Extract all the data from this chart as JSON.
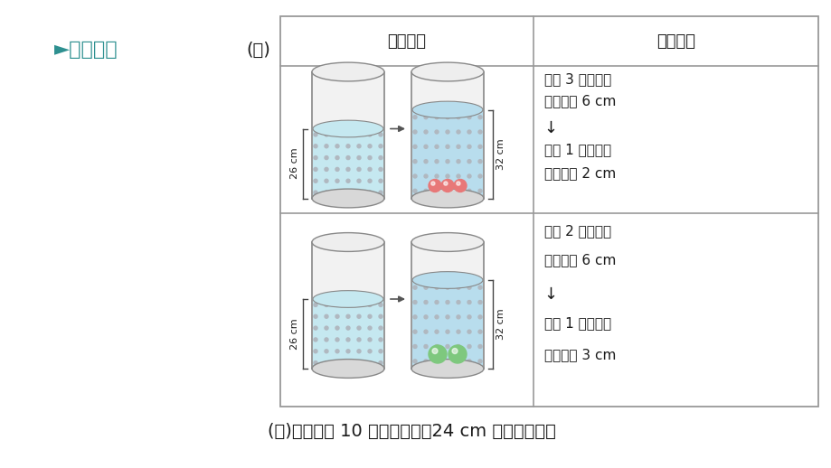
{
  "bg_color": "#ffffff",
  "title_color": "#2E9090",
  "title_text": "►思路分析",
  "label1": "(１)",
  "col1_header": "图形信息",
  "col2_header": "数学关系",
  "row1_text": [
    "放入 3 个小球，",
    "水面升高 6 cm",
    "↓",
    "放入 1 个小球，",
    "水面升高 2 cm"
  ],
  "row2_text": [
    "放入 2 个大球，",
    "水面升高 6 cm",
    "↓",
    "放入 1 个大球，",
    "水面升高 3 cm"
  ],
  "bottom_text_parts": [
    {
      "text": "(２)根据放入 10 个球水面升高",
      "style": "normal"
    },
    {
      "text": "24 cm",
      "style": "italic"
    },
    {
      "text": " 列方程求解。",
      "style": "normal"
    }
  ],
  "border_color": "#999999",
  "text_color": "#1a1a1a",
  "water_color": "#c5e8f0",
  "water_color2": "#b8dded",
  "dot_color": "#b0b8c0",
  "cylinder_fill": "#f2f2f2",
  "cyl_border": "#888888",
  "small_ball_color": "#e87878",
  "large_ball_color": "#7ec87e",
  "arrow_color": "#555555",
  "bracket_color": "#444444",
  "label_26cm": "26 cm",
  "label_32cm": "32 cm"
}
